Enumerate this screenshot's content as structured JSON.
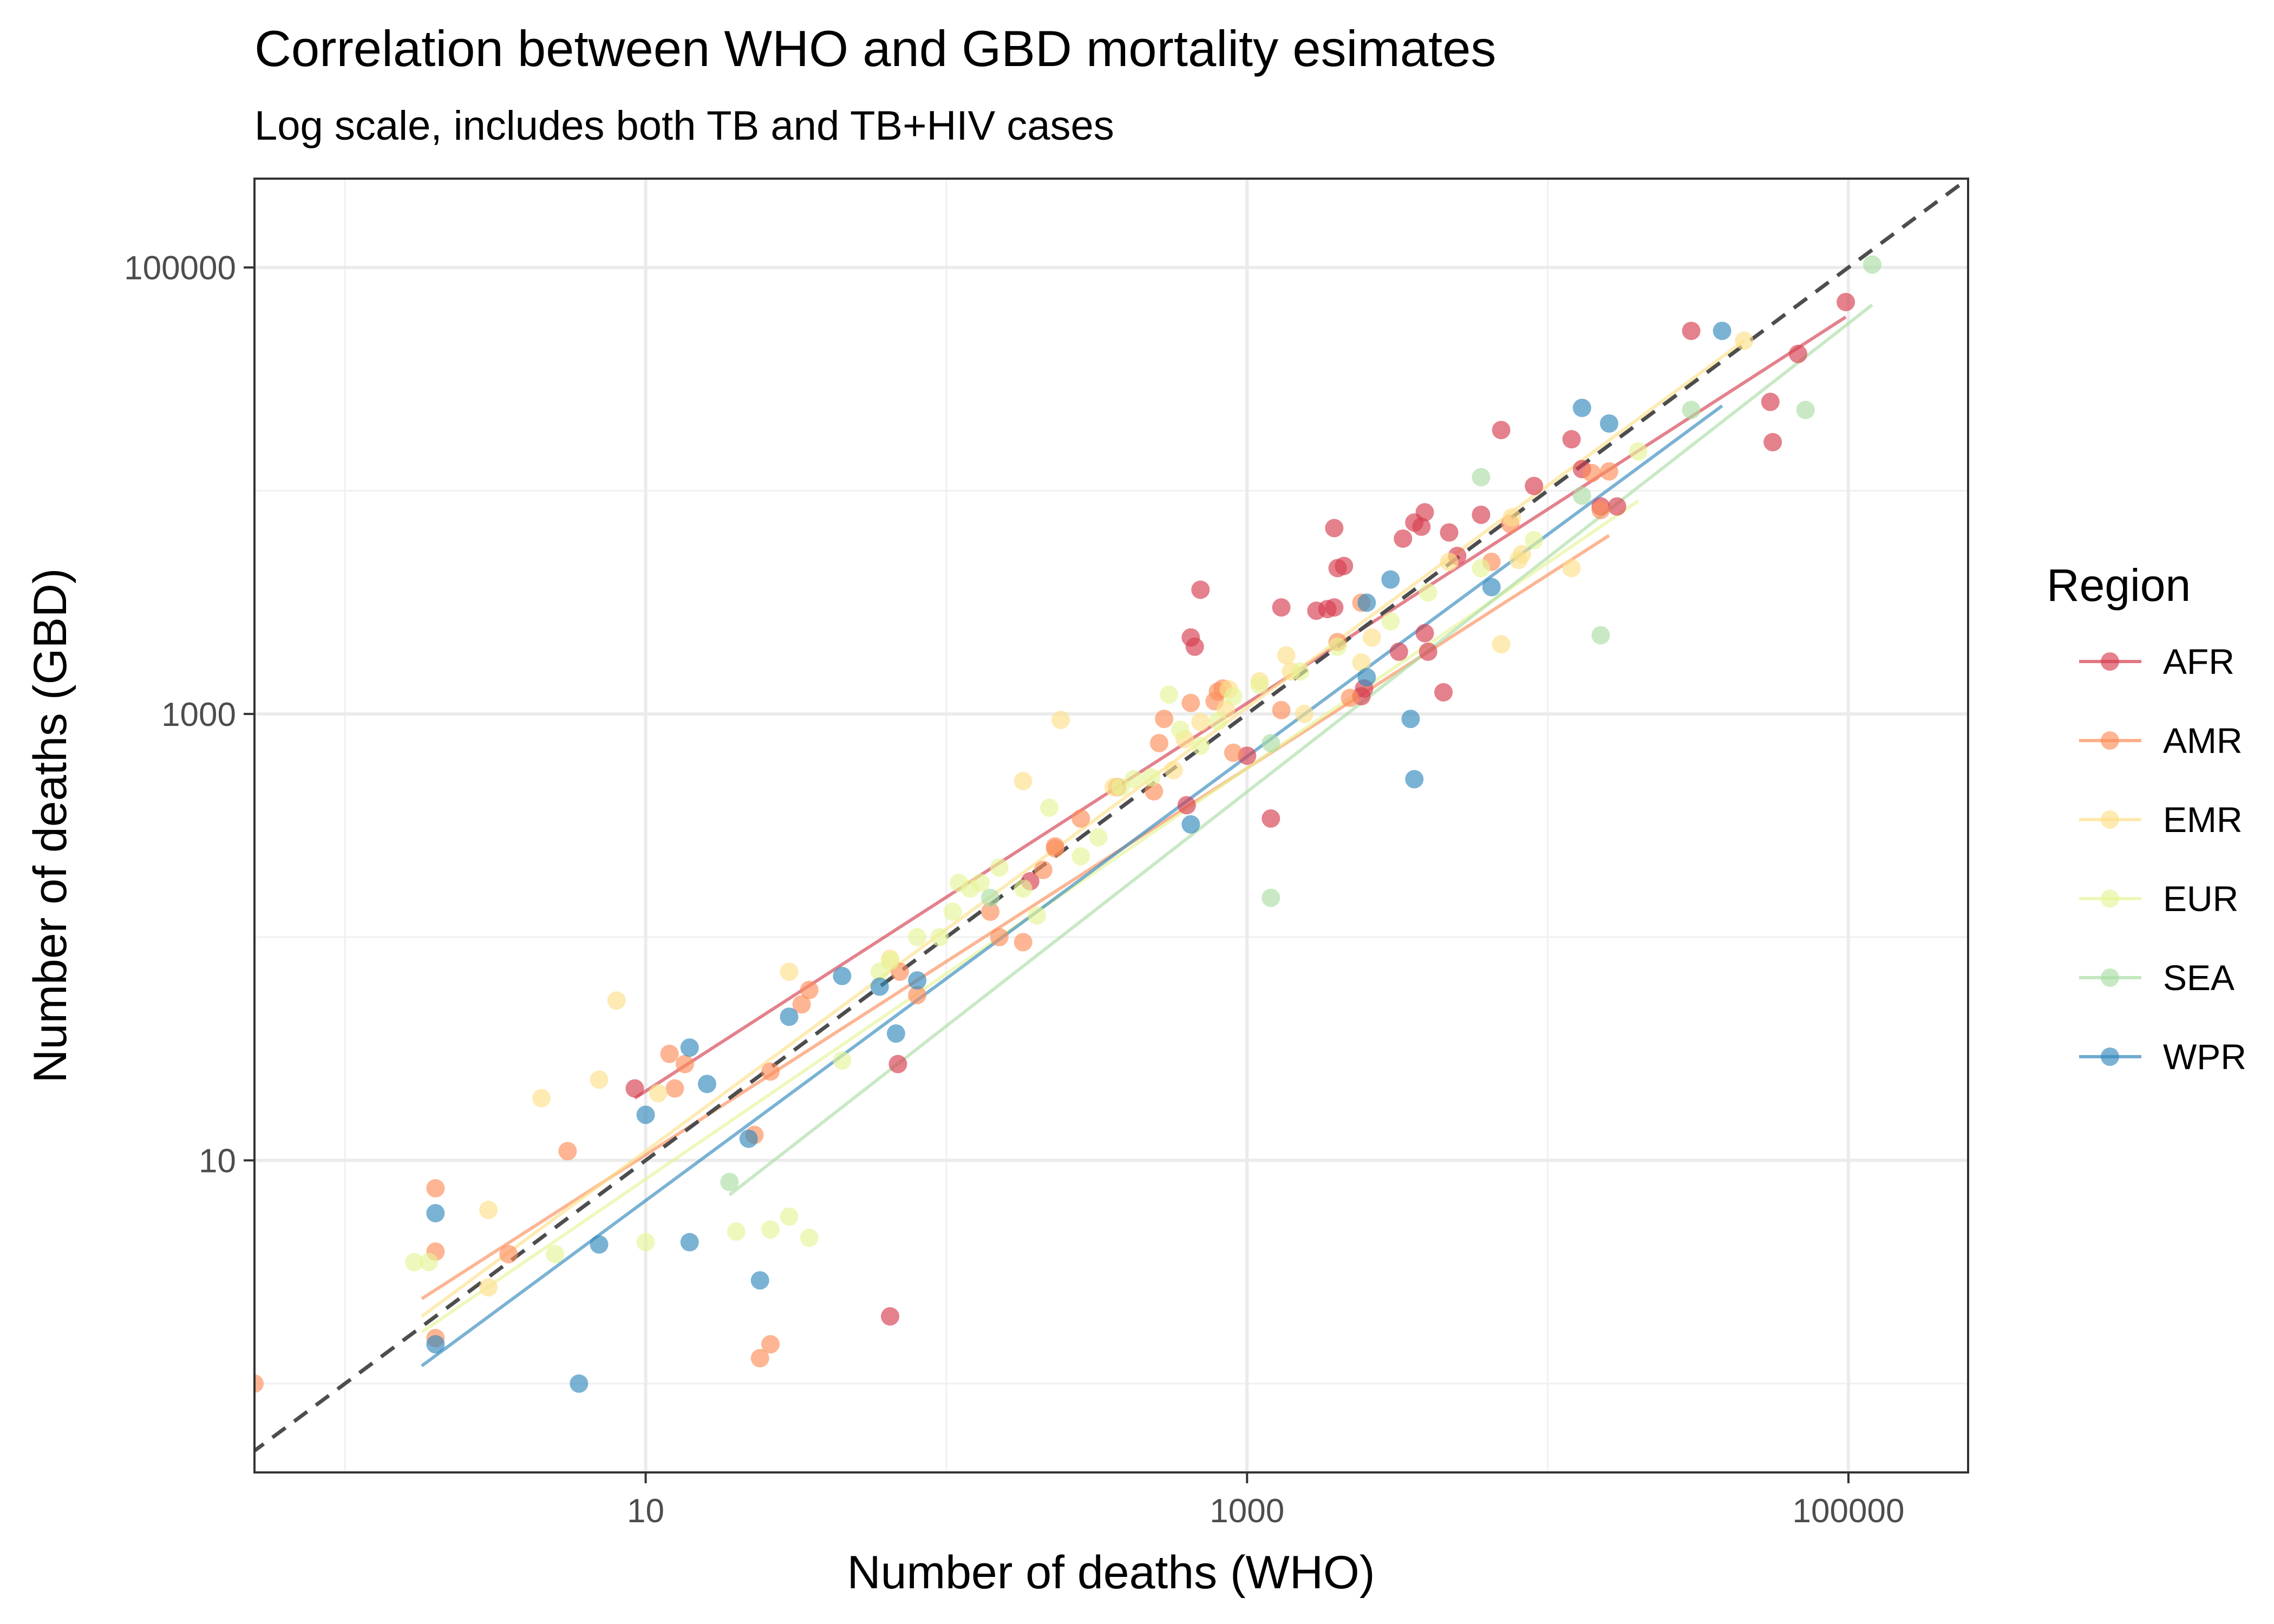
{
  "chart_data": {
    "type": "scatter",
    "title": "Correlation between WHO and GBD mortality esimates",
    "subtitle": "Log scale, includes both TB and TB+HIV cases",
    "xlabel": "Number of deaths (WHO)",
    "ylabel": "Number of deaths (GBD)",
    "xscale": "log10",
    "yscale": "log10",
    "xlim": [
      0.5,
      250000
    ],
    "ylim": [
      0.4,
      250000
    ],
    "x_ticks": [
      10,
      1000,
      100000
    ],
    "x_tick_labels": [
      "10",
      "1000",
      "100000"
    ],
    "y_ticks": [
      10,
      1000,
      100000
    ],
    "y_tick_labels": [
      "10",
      "1000",
      "100000"
    ],
    "grid": true,
    "reference_line": {
      "slope": 1,
      "intercept": 0,
      "style": "dashed",
      "color": "#4d4d4d"
    },
    "legend": {
      "title": "Region",
      "position": "right"
    },
    "series": [
      {
        "name": "AFR",
        "color": "#d53e4f",
        "points": [
          [
            9.2,
            21
          ],
          [
            65,
            2
          ],
          [
            69,
            27
          ],
          [
            190,
            178
          ],
          [
            630,
            390
          ],
          [
            650,
            2200
          ],
          [
            670,
            2000
          ],
          [
            700,
            3600
          ],
          [
            1000,
            650
          ],
          [
            1200,
            340
          ],
          [
            1300,
            3000
          ],
          [
            1700,
            2900
          ],
          [
            1850,
            2950
          ],
          [
            1950,
            6800
          ],
          [
            1950,
            3000
          ],
          [
            2000,
            4500
          ],
          [
            2100,
            4600
          ],
          [
            2400,
            1200
          ],
          [
            2450,
            1300
          ],
          [
            3200,
            1900
          ],
          [
            3300,
            6100
          ],
          [
            3600,
            7200
          ],
          [
            3800,
            6900
          ],
          [
            3900,
            8000
          ],
          [
            3900,
            2300
          ],
          [
            4000,
            1900
          ],
          [
            4500,
            1250
          ],
          [
            4700,
            6500
          ],
          [
            5000,
            5100
          ],
          [
            6000,
            7800
          ],
          [
            7000,
            18700
          ],
          [
            9000,
            10500
          ],
          [
            12000,
            17000
          ],
          [
            13000,
            12500
          ],
          [
            15000,
            8500
          ],
          [
            17000,
            8500
          ],
          [
            30000,
            52000
          ],
          [
            55000,
            25000
          ],
          [
            56000,
            16500
          ],
          [
            68000,
            41000
          ],
          [
            98000,
            70000
          ]
        ]
      },
      {
        "name": "AMR",
        "color": "#fc8d59",
        "points": [
          [
            0.5,
            1
          ],
          [
            2,
            1.6
          ],
          [
            2,
            3.9
          ],
          [
            2,
            7.5
          ],
          [
            3.5,
            3.8
          ],
          [
            5.5,
            11
          ],
          [
            12,
            30
          ],
          [
            12.5,
            21
          ],
          [
            13.5,
            27
          ],
          [
            23,
            13
          ],
          [
            24,
            1.3
          ],
          [
            26,
            25
          ],
          [
            26,
            1.5
          ],
          [
            33,
            50
          ],
          [
            35,
            58
          ],
          [
            70,
            70
          ],
          [
            80,
            55
          ],
          [
            140,
            130
          ],
          [
            150,
            100
          ],
          [
            180,
            95
          ],
          [
            210,
            200
          ],
          [
            230,
            255
          ],
          [
            230,
            250
          ],
          [
            280,
            340
          ],
          [
            370,
            470
          ],
          [
            490,
            450
          ],
          [
            510,
            740
          ],
          [
            530,
            950
          ],
          [
            650,
            1120
          ],
          [
            780,
            1140
          ],
          [
            800,
            1260
          ],
          [
            830,
            1300
          ],
          [
            900,
            670
          ],
          [
            1300,
            1040
          ],
          [
            2000,
            2100
          ],
          [
            2200,
            1180
          ],
          [
            2400,
            3150
          ],
          [
            6500,
            4800
          ],
          [
            7500,
            7100
          ],
          [
            14000,
            12000
          ],
          [
            15000,
            8200
          ],
          [
            16000,
            12200
          ]
        ]
      },
      {
        "name": "EMR",
        "color": "#fee08b",
        "points": [
          [
            3,
            2.7
          ],
          [
            3,
            6
          ],
          [
            4.5,
            19
          ],
          [
            7,
            23
          ],
          [
            8,
            52
          ],
          [
            11,
            20
          ],
          [
            30,
            70
          ],
          [
            65,
            80
          ],
          [
            180,
            500
          ],
          [
            240,
            940
          ],
          [
            360,
            470
          ],
          [
            570,
            560
          ],
          [
            620,
            770
          ],
          [
            700,
            920
          ],
          [
            850,
            1050
          ],
          [
            870,
            1290
          ],
          [
            1100,
            1400
          ],
          [
            1350,
            1830
          ],
          [
            1400,
            1550
          ],
          [
            1550,
            1000
          ],
          [
            2400,
            1700
          ],
          [
            2600,
            2200
          ],
          [
            4700,
            4800
          ],
          [
            7000,
            2050
          ],
          [
            7600,
            7600
          ],
          [
            8000,
            4900
          ],
          [
            8200,
            5200
          ],
          [
            12000,
            4500
          ],
          [
            45000,
            47000
          ]
        ]
      },
      {
        "name": "EUR",
        "color": "#e6f598",
        "points": [
          [
            1.7,
            3.5
          ],
          [
            1.9,
            3.5
          ],
          [
            5,
            3.8
          ],
          [
            10,
            4.3
          ],
          [
            20,
            4.8
          ],
          [
            26,
            4.9
          ],
          [
            30,
            5.6
          ],
          [
            35,
            4.5
          ],
          [
            45,
            28
          ],
          [
            60,
            70
          ],
          [
            65,
            78
          ],
          [
            80,
            100
          ],
          [
            95,
            100
          ],
          [
            105,
            130
          ],
          [
            110,
            175
          ],
          [
            120,
            165
          ],
          [
            130,
            175
          ],
          [
            150,
            205
          ],
          [
            180,
            165
          ],
          [
            200,
            125
          ],
          [
            220,
            380
          ],
          [
            280,
            230
          ],
          [
            320,
            280
          ],
          [
            380,
            470
          ],
          [
            420,
            510
          ],
          [
            480,
            520
          ],
          [
            550,
            1220
          ],
          [
            600,
            850
          ],
          [
            700,
            720
          ],
          [
            800,
            930
          ],
          [
            900,
            1200
          ],
          [
            1100,
            1350
          ],
          [
            1500,
            1550
          ],
          [
            2000,
            2000
          ],
          [
            3000,
            2600
          ],
          [
            4000,
            3500
          ],
          [
            6000,
            4500
          ],
          [
            9000,
            6000
          ],
          [
            20000,
            15000
          ]
        ]
      },
      {
        "name": "SEA",
        "color": "#abdda4",
        "points": [
          [
            19,
            8
          ],
          [
            140,
            150
          ],
          [
            1200,
            740
          ],
          [
            1200,
            150
          ],
          [
            6000,
            11500
          ],
          [
            13000,
            9500
          ],
          [
            15000,
            2250
          ],
          [
            30000,
            23000
          ],
          [
            72000,
            23000
          ],
          [
            120000,
            103000
          ]
        ]
      },
      {
        "name": "WPR",
        "color": "#3288bd",
        "points": [
          [
            2,
            1.5
          ],
          [
            2,
            5.8
          ],
          [
            6,
            1
          ],
          [
            7,
            4.2
          ],
          [
            10,
            16
          ],
          [
            14,
            32
          ],
          [
            14,
            4.3
          ],
          [
            16,
            22
          ],
          [
            22,
            12.5
          ],
          [
            24,
            2.9
          ],
          [
            30,
            44
          ],
          [
            45,
            67
          ],
          [
            60,
            60
          ],
          [
            68,
            37
          ],
          [
            80,
            64
          ],
          [
            650,
            320
          ],
          [
            2500,
            1460
          ],
          [
            2500,
            3150
          ],
          [
            3000,
            4000
          ],
          [
            3500,
            950
          ],
          [
            3600,
            510
          ],
          [
            6500,
            3700
          ],
          [
            13000,
            23500
          ],
          [
            16000,
            20000
          ],
          [
            38000,
            52000
          ]
        ]
      }
    ],
    "trend_lines": [
      {
        "name": "AFR",
        "color": "#d53e4f",
        "from": [
          9.2,
          19
        ],
        "to": [
          98000,
          60000
        ]
      },
      {
        "name": "AMR",
        "color": "#fc8d59",
        "from": [
          1.8,
          2.4
        ],
        "to": [
          16000,
          6300
        ]
      },
      {
        "name": "EMR",
        "color": "#fee08b",
        "from": [
          1.8,
          2.0
        ],
        "to": [
          45000,
          47000
        ]
      },
      {
        "name": "EUR",
        "color": "#e6f598",
        "from": [
          1.8,
          1.7
        ],
        "to": [
          20000,
          9000
        ]
      },
      {
        "name": "SEA",
        "color": "#abdda4",
        "from": [
          19,
          7
        ],
        "to": [
          120000,
          68000
        ]
      },
      {
        "name": "WPR",
        "color": "#3288bd",
        "from": [
          1.8,
          1.2
        ],
        "to": [
          38000,
          24000
        ]
      }
    ]
  }
}
